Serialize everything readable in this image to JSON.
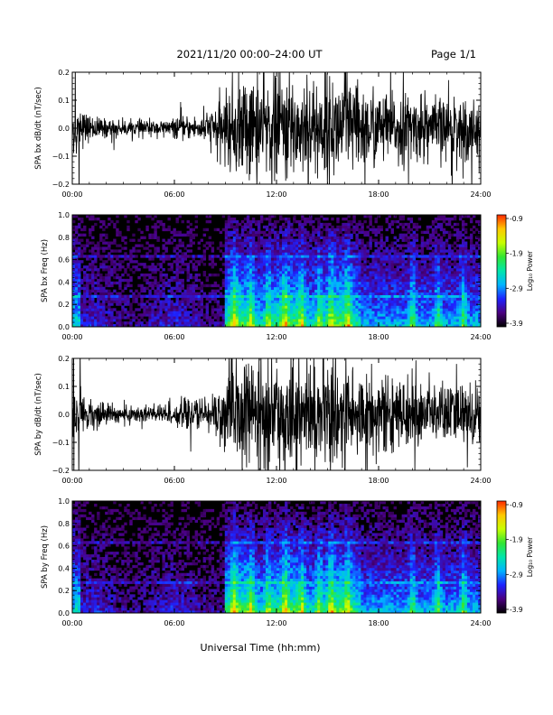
{
  "header": {
    "title": "2021/11/20  00:00–24:00 UT",
    "page_label": "Page 1/1"
  },
  "x_axis": {
    "label": "Universal Time (hh:mm)",
    "ticks": [
      "00:00",
      "06:00",
      "12:00",
      "18:00",
      "24:00"
    ],
    "range_hours": [
      0,
      24
    ]
  },
  "colorbar": {
    "label": "Log₁₀ Power",
    "ticks": [
      "-0.9",
      "-1.9",
      "-2.9",
      "-3.9"
    ],
    "range": [
      -3.9,
      -0.9
    ],
    "colormap": [
      "#000000",
      "#4b0080",
      "#1e22ff",
      "#00b4ff",
      "#00e6aa",
      "#32e632",
      "#c8ff00",
      "#ffc800",
      "#ff2800"
    ]
  },
  "chart_data": [
    {
      "id": "panel-bx-timeseries",
      "type": "line",
      "ylabel": "SPA bx dB/dt (nT/sec)",
      "yticks": [
        "0.2",
        "0.1",
        "0.0",
        "−0.1",
        "−0.2"
      ],
      "ylim": [
        -0.2,
        0.2
      ],
      "x_unit": "hours UT",
      "envelope": {
        "x": [
          0,
          1,
          2,
          3,
          4,
          5,
          6,
          7,
          8,
          9,
          9.5,
          10,
          11,
          12,
          13,
          14,
          15,
          16,
          17,
          18,
          19,
          20,
          21,
          22,
          23,
          24
        ],
        "amplitude": [
          0.1,
          0.05,
          0.035,
          0.03,
          0.03,
          0.03,
          0.035,
          0.045,
          0.06,
          0.13,
          0.2,
          0.2,
          0.2,
          0.2,
          0.2,
          0.2,
          0.2,
          0.19,
          0.17,
          0.15,
          0.13,
          0.13,
          0.12,
          0.12,
          0.12,
          0.12
        ]
      }
    },
    {
      "id": "panel-bx-spectrogram",
      "type": "heatmap",
      "ylabel": "SPA bx Freq (Hz)",
      "yticks": [
        "1.0",
        "0.8",
        "0.6",
        "0.4",
        "0.2",
        "0.0"
      ],
      "ylim": [
        0,
        1.0
      ],
      "zlim": [
        -3.9,
        -0.9
      ],
      "activity_bursts_hours": [
        9.5,
        10.5,
        11.5,
        12.5,
        13.5,
        14.5,
        15.2,
        16.2,
        20.0,
        21.5,
        23.0
      ]
    },
    {
      "id": "panel-by-timeseries",
      "type": "line",
      "ylabel": "SPA by dB/dt (nT/sec)",
      "yticks": [
        "0.2",
        "0.1",
        "0.0",
        "−0.1",
        "−0.2"
      ],
      "ylim": [
        -0.2,
        0.2
      ],
      "x_unit": "hours UT",
      "envelope": {
        "x": [
          0,
          1,
          2,
          3,
          4,
          5,
          6,
          7,
          8,
          9,
          9.5,
          10,
          11,
          12,
          13,
          14,
          15,
          16,
          17,
          18,
          19,
          20,
          21,
          22,
          23,
          24
        ],
        "amplitude": [
          0.1,
          0.06,
          0.04,
          0.035,
          0.035,
          0.04,
          0.045,
          0.055,
          0.07,
          0.13,
          0.2,
          0.2,
          0.2,
          0.2,
          0.2,
          0.2,
          0.2,
          0.2,
          0.18,
          0.15,
          0.13,
          0.13,
          0.12,
          0.12,
          0.12,
          0.12
        ]
      }
    },
    {
      "id": "panel-by-spectrogram",
      "type": "heatmap",
      "ylabel": "SPA by Freq (Hz)",
      "yticks": [
        "1.0",
        "0.8",
        "0.6",
        "0.4",
        "0.2",
        "0.0"
      ],
      "ylim": [
        0,
        1.0
      ],
      "zlim": [
        -3.9,
        -0.9
      ],
      "activity_bursts_hours": [
        9.5,
        10.5,
        11.5,
        12.5,
        13.5,
        14.5,
        15.2,
        16.2,
        20.0,
        21.5,
        23.0
      ]
    }
  ]
}
